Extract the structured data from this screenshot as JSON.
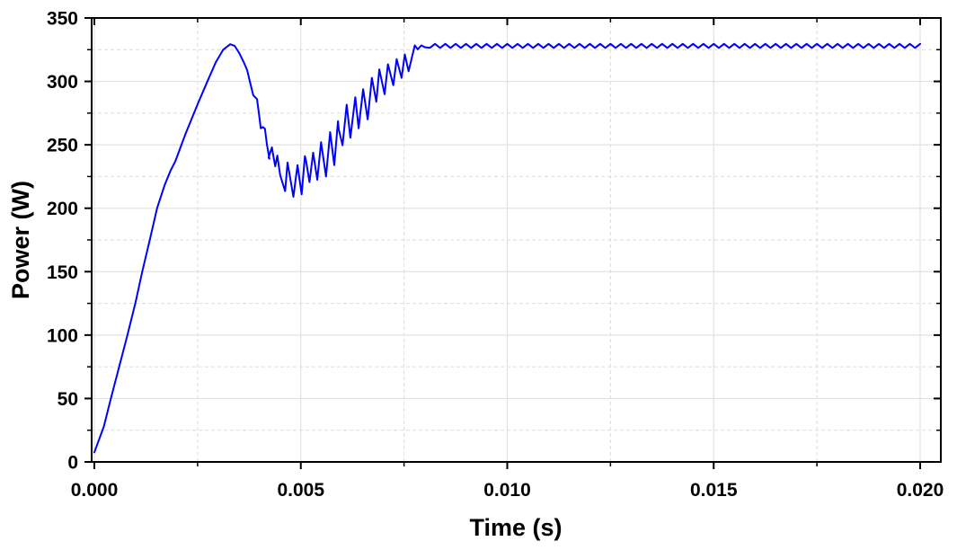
{
  "chart_data": {
    "type": "line",
    "title": "",
    "xlabel": "Time (s)",
    "ylabel": "Power (W)",
    "xlim": [
      0.0,
      0.02
    ],
    "ylim": [
      0,
      350
    ],
    "x_ticks": [
      0.0,
      0.005,
      0.01,
      0.015,
      0.02
    ],
    "x_tick_labels": [
      "0.000",
      "0.005",
      "0.010",
      "0.015",
      "0.020"
    ],
    "x_minor_ticks": [
      0.0025,
      0.0075,
      0.0125,
      0.0175
    ],
    "y_ticks": [
      0,
      50,
      100,
      150,
      200,
      250,
      300,
      350
    ],
    "y_tick_labels": [
      "0",
      "50",
      "100",
      "150",
      "200",
      "250",
      "300",
      "350"
    ],
    "y_minor_ticks": [
      25,
      75,
      125,
      175,
      225,
      275,
      325
    ],
    "grid": true,
    "legend": null,
    "series": [
      {
        "name": "Power",
        "color": "#0000ff",
        "x": [
          0.0,
          0.00023,
          0.0004,
          0.0006,
          0.0008,
          0.001,
          0.00116,
          0.00135,
          0.00152,
          0.0017,
          0.00185,
          0.00196,
          0.0022,
          0.0025,
          0.00275,
          0.00294,
          0.00312,
          0.00329,
          0.0034,
          0.00352,
          0.00362,
          0.0037,
          0.00378,
          0.00385,
          0.00394,
          0.00398,
          0.00403,
          0.00408,
          0.00413,
          0.00418,
          0.00424,
          0.00422,
          0.0043,
          0.00433,
          0.00438,
          0.00443,
          0.0045,
          0.00462,
          0.00468,
          0.00482,
          0.00492,
          0.00502,
          0.0051,
          0.00513,
          0.00521,
          0.0053,
          0.0054,
          0.00549,
          0.00561,
          0.00571,
          0.00581,
          0.0059,
          0.00592,
          0.00601,
          0.00611,
          0.0062,
          0.00632,
          0.0064,
          0.00651,
          0.00662,
          0.00672,
          0.00683,
          0.0069,
          0.00703,
          0.00711,
          0.00724,
          0.00732,
          0.00744,
          0.00752,
          0.00761,
          0.00776,
          0.00783,
          0.00792,
          0.008
        ],
        "y": [
          7.6,
          28,
          50,
          75,
          100,
          126,
          150,
          176,
          200,
          218,
          230,
          237,
          258,
          282,
          301,
          315,
          325,
          329.3,
          328,
          321.7,
          315,
          309,
          298,
          289,
          286,
          276,
          263,
          264,
          262.7,
          250,
          239,
          240,
          248,
          242,
          233,
          241.5,
          226,
          213.5,
          236,
          209,
          234,
          211,
          241,
          237,
          220.6,
          243.8,
          222.5,
          252,
          225,
          260,
          234,
          268.6,
          262,
          249.7,
          281.6,
          255.6,
          287.5,
          263,
          293.9,
          270,
          302.8,
          284,
          309.5,
          289.9,
          313.5,
          297,
          317.5,
          302.8,
          321.3,
          308,
          328.4,
          325.3,
          328.4,
          327
        ]
      }
    ],
    "steady_state": {
      "t_start": 0.008,
      "t_end": 0.02,
      "mean_w": 328.0,
      "ripple_amplitude_w": 1.6,
      "ripple_period_s": 0.00025
    }
  }
}
